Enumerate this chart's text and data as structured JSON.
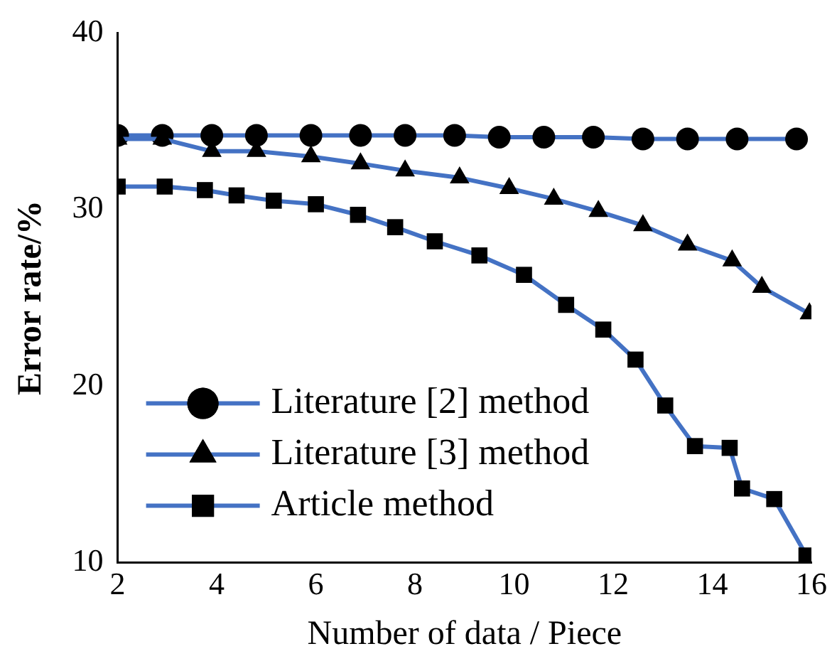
{
  "chart_data": {
    "type": "line",
    "xlabel": "Number of data / Piece",
    "ylabel": "Error rate/%",
    "xlim": [
      2,
      16
    ],
    "xticks": [
      2,
      4,
      6,
      8,
      10,
      12,
      14,
      16
    ],
    "ylim": [
      10,
      40
    ],
    "yticks": [
      10,
      20,
      30,
      40
    ],
    "grid": false,
    "legend": "bottom left",
    "line_style": "solid",
    "series": [
      {
        "name": "Literature [2] method",
        "color": "#4472c4",
        "marker": "circle",
        "x": [
          2.0,
          2.9,
          3.9,
          4.8,
          5.9,
          6.9,
          7.8,
          8.8,
          9.7,
          10.6,
          11.6,
          12.6,
          13.5,
          14.5,
          15.7
        ],
        "values": [
          34.2,
          34.2,
          34.2,
          34.2,
          34.2,
          34.2,
          34.2,
          34.2,
          34.1,
          34.1,
          34.1,
          34.0,
          34.0,
          34.0,
          34.0
        ]
      },
      {
        "name": "Literature [3] method",
        "color": "#4472c4",
        "marker": "triangle",
        "x": [
          2.0,
          2.9,
          3.9,
          4.8,
          5.9,
          6.9,
          7.8,
          8.9,
          9.9,
          10.8,
          11.7,
          12.6,
          13.5,
          14.4,
          15.0,
          15.96
        ],
        "values": [
          34.0,
          34.0,
          33.3,
          33.3,
          33.0,
          32.6,
          32.2,
          31.8,
          31.2,
          30.6,
          29.9,
          29.1,
          28.0,
          27.1,
          25.6,
          24.1
        ]
      },
      {
        "name": "Article method",
        "color": "#4472c4",
        "marker": "square",
        "x": [
          2.0,
          2.95,
          3.76,
          4.4,
          5.15,
          6.0,
          6.85,
          7.6,
          8.4,
          9.3,
          10.2,
          11.05,
          11.8,
          12.45,
          13.05,
          13.65,
          14.35,
          14.6,
          15.25,
          15.9
        ],
        "values": [
          31.3,
          31.3,
          31.1,
          30.8,
          30.5,
          30.3,
          29.7,
          29.0,
          28.2,
          27.4,
          26.3,
          24.6,
          23.2,
          21.5,
          18.9,
          16.6,
          16.5,
          14.2,
          13.6,
          10.4
        ]
      }
    ]
  }
}
